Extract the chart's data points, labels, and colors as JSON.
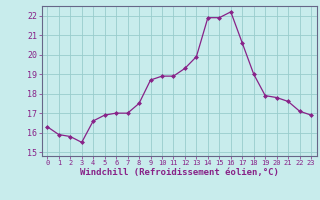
{
  "x": [
    0,
    1,
    2,
    3,
    4,
    5,
    6,
    7,
    8,
    9,
    10,
    11,
    12,
    13,
    14,
    15,
    16,
    17,
    18,
    19,
    20,
    21,
    22,
    23
  ],
  "y": [
    16.3,
    15.9,
    15.8,
    15.5,
    16.6,
    16.9,
    17.0,
    17.0,
    17.5,
    18.7,
    18.9,
    18.9,
    19.3,
    19.9,
    21.9,
    21.9,
    22.2,
    20.6,
    19.0,
    17.9,
    17.8,
    17.6,
    17.1,
    16.9
  ],
  "line_color": "#882288",
  "marker": "D",
  "marker_size": 2.0,
  "linewidth": 0.9,
  "bg_color": "#c8ecec",
  "grid_color": "#99cccc",
  "xlabel": "Windchill (Refroidissement éolien,°C)",
  "xlabel_color": "#882288",
  "tick_color": "#882288",
  "ylim": [
    14.8,
    22.5
  ],
  "xlim": [
    -0.5,
    23.5
  ],
  "yticks": [
    15,
    16,
    17,
    18,
    19,
    20,
    21,
    22
  ],
  "xticks": [
    0,
    1,
    2,
    3,
    4,
    5,
    6,
    7,
    8,
    9,
    10,
    11,
    12,
    13,
    14,
    15,
    16,
    17,
    18,
    19,
    20,
    21,
    22,
    23
  ],
  "ylabel_fontsize": 6.0,
  "xlabel_fontsize": 6.5,
  "xtick_fontsize": 5.0,
  "ytick_fontsize": 6.0
}
